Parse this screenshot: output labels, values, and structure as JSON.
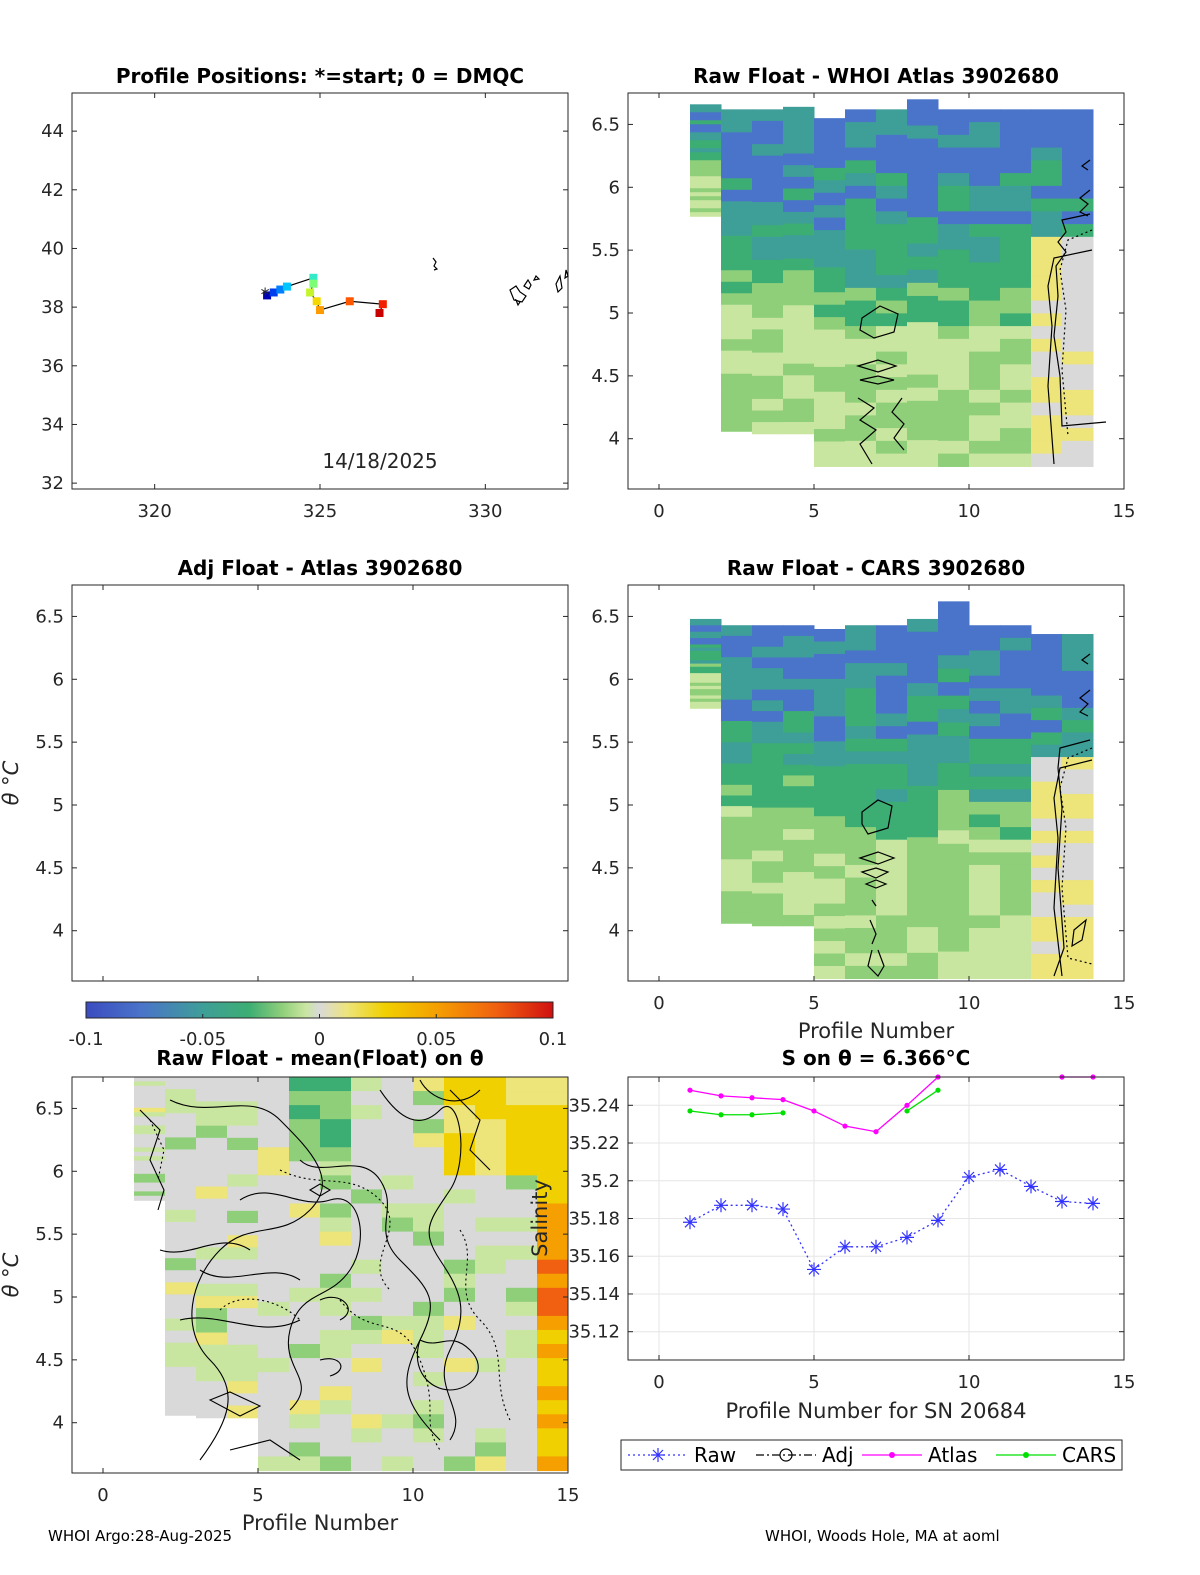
{
  "footer": {
    "left": "WHOI Argo:28-Aug-2025",
    "right": "WHOI, Woods Hole, MA at aoml"
  },
  "colors": {
    "raw": "#3333ff",
    "adj": "#000000",
    "atlas": "#ff00ff",
    "cars": "#00e000",
    "grid": "#e6e6e6",
    "cmap": [
      "#3b4cc0",
      "#4a74c9",
      "#3e9e98",
      "#3dae73",
      "#8fcf7a",
      "#c9e6a0",
      "#d9d9d9",
      "#ede47a",
      "#f0d000",
      "#f5a000",
      "#f06010",
      "#d01010"
    ]
  },
  "chart_data": [
    {
      "id": "positions",
      "type": "scatter",
      "title": "Profile Positions: *=start; 0 = DMQC",
      "xlabel": "",
      "ylabel": "",
      "xlim": [
        317.5,
        332.5
      ],
      "ylim": [
        31.8,
        45.3
      ],
      "xticks": [
        320,
        325,
        330
      ],
      "yticks": [
        32,
        34,
        36,
        38,
        40,
        42,
        44
      ],
      "annotation": "14/18/2025",
      "track_lon": [
        323.4,
        323.6,
        323.8,
        324.0,
        324.8,
        324.8,
        324.7,
        324.9,
        325.0,
        325.9,
        326.9,
        326.8
      ],
      "track_lat": [
        38.4,
        38.5,
        38.6,
        38.7,
        39.0,
        38.8,
        38.5,
        38.2,
        37.9,
        38.2,
        38.1,
        37.8
      ]
    },
    {
      "id": "raw_atlas",
      "type": "heatmap",
      "title": "Raw Float - WHOI Atlas  3902680",
      "xlim": [
        -1,
        15
      ],
      "ylim": [
        3.6,
        6.75
      ],
      "xticks": [
        0,
        5,
        10,
        15
      ],
      "yticks": [
        4,
        4.5,
        5,
        5.5,
        6,
        6.5
      ],
      "profiles": [
        1,
        2,
        3,
        4,
        5,
        6,
        7,
        8,
        9,
        10,
        11,
        12,
        13
      ],
      "theta_bottom": [
        5.77,
        4.06,
        4.04,
        4.04,
        3.78,
        3.78,
        3.78,
        3.78,
        3.78,
        3.78,
        3.78,
        3.78,
        3.78
      ],
      "theta_top": [
        6.66,
        6.62,
        6.62,
        6.64,
        6.55,
        6.62,
        6.62,
        6.7,
        6.62,
        6.62,
        6.62,
        6.62,
        6.62
      ]
    },
    {
      "id": "adj_atlas",
      "type": "heatmap",
      "title": "Adj Float - Atlas  3902680",
      "ylabel": "θ °C",
      "xlim": [
        -1,
        15
      ],
      "ylim": [
        3.6,
        6.75
      ],
      "yticks": [
        4,
        4.5,
        5,
        5.5,
        6,
        6.5
      ],
      "colorbar_ticks": [
        "-0.1",
        "-0.05",
        "0",
        "0.05",
        "0.1"
      ],
      "colorbar_range": [
        -0.1,
        0.1
      ]
    },
    {
      "id": "raw_cars",
      "type": "heatmap",
      "title": "Raw Float - CARS  3902680",
      "xlabel": "Profile Number",
      "xlim": [
        -1,
        15
      ],
      "ylim": [
        3.6,
        6.75
      ],
      "xticks": [
        0,
        5,
        10,
        15
      ],
      "yticks": [
        4,
        4.5,
        5,
        5.5,
        6,
        6.5
      ],
      "profiles": [
        1,
        2,
        3,
        4,
        5,
        6,
        7,
        8,
        9,
        10,
        11,
        12,
        13
      ],
      "theta_bottom": [
        5.77,
        4.06,
        4.04,
        4.04,
        3.62,
        3.62,
        3.62,
        3.62,
        3.62,
        3.62,
        3.62,
        3.62,
        3.62
      ],
      "theta_top": [
        6.48,
        6.43,
        6.43,
        6.43,
        6.4,
        6.43,
        6.43,
        6.48,
        6.62,
        6.43,
        6.43,
        6.36,
        6.36
      ]
    },
    {
      "id": "raw_mean",
      "type": "heatmap",
      "title": "Raw Float - mean(Float) on θ",
      "xlabel": "Profile Number",
      "ylabel": "θ °C",
      "xlim": [
        -1,
        15
      ],
      "ylim": [
        3.6,
        6.75
      ],
      "xticks": [
        0,
        5,
        10,
        15
      ],
      "yticks": [
        4,
        4.5,
        5,
        5.5,
        6,
        6.5
      ],
      "profiles": [
        1,
        2,
        3,
        4,
        5,
        6,
        7,
        8,
        9,
        10,
        11,
        12,
        13,
        14
      ],
      "theta_bottom": [
        5.77,
        4.06,
        4.04,
        4.04,
        3.62,
        3.62,
        3.62,
        3.62,
        3.62,
        3.62,
        3.62,
        3.62,
        3.62,
        3.62
      ],
      "theta_top": [
        6.75,
        6.75,
        6.75,
        6.75,
        6.75,
        6.75,
        6.75,
        6.75,
        6.75,
        6.75,
        6.75,
        6.75,
        6.75,
        6.75
      ]
    },
    {
      "id": "salinity",
      "type": "line",
      "title": "S on θ = 6.366°C",
      "xlabel": "Profile Number for SN 20684",
      "ylabel": "Salinity",
      "xlim": [
        -1,
        15
      ],
      "ylim": [
        35.105,
        35.255
      ],
      "xticks": [
        0,
        5,
        10,
        15
      ],
      "yticks": [
        35.12,
        35.14,
        35.16,
        35.18,
        35.2,
        35.22,
        35.24
      ],
      "ytick_labels": [
        "35.12",
        "35.14",
        "35.16",
        "35.18",
        "35.2",
        "35.22",
        "35.24"
      ],
      "series": [
        {
          "name": "Raw",
          "x": [
            1,
            2,
            3,
            4,
            5,
            6,
            7,
            8,
            9,
            10,
            11,
            12,
            13,
            14
          ],
          "y": [
            35.178,
            35.187,
            35.187,
            35.185,
            35.153,
            35.165,
            35.165,
            35.17,
            35.179,
            35.202,
            35.206,
            35.197,
            35.189,
            35.188
          ]
        },
        {
          "name": "Adj",
          "x": [],
          "y": []
        },
        {
          "name": "Atlas",
          "x": [
            1,
            2,
            3,
            4,
            5,
            6,
            7,
            8,
            9,
            13,
            14
          ],
          "y": [
            35.248,
            35.245,
            35.244,
            35.243,
            35.237,
            35.229,
            35.226,
            35.24,
            35.255,
            35.255,
            35.255
          ]
        },
        {
          "name": "CARS",
          "x": [
            1,
            2,
            3,
            4,
            8,
            9
          ],
          "y": [
            35.237,
            35.235,
            35.235,
            35.236,
            35.237,
            35.248
          ]
        }
      ]
    }
  ]
}
